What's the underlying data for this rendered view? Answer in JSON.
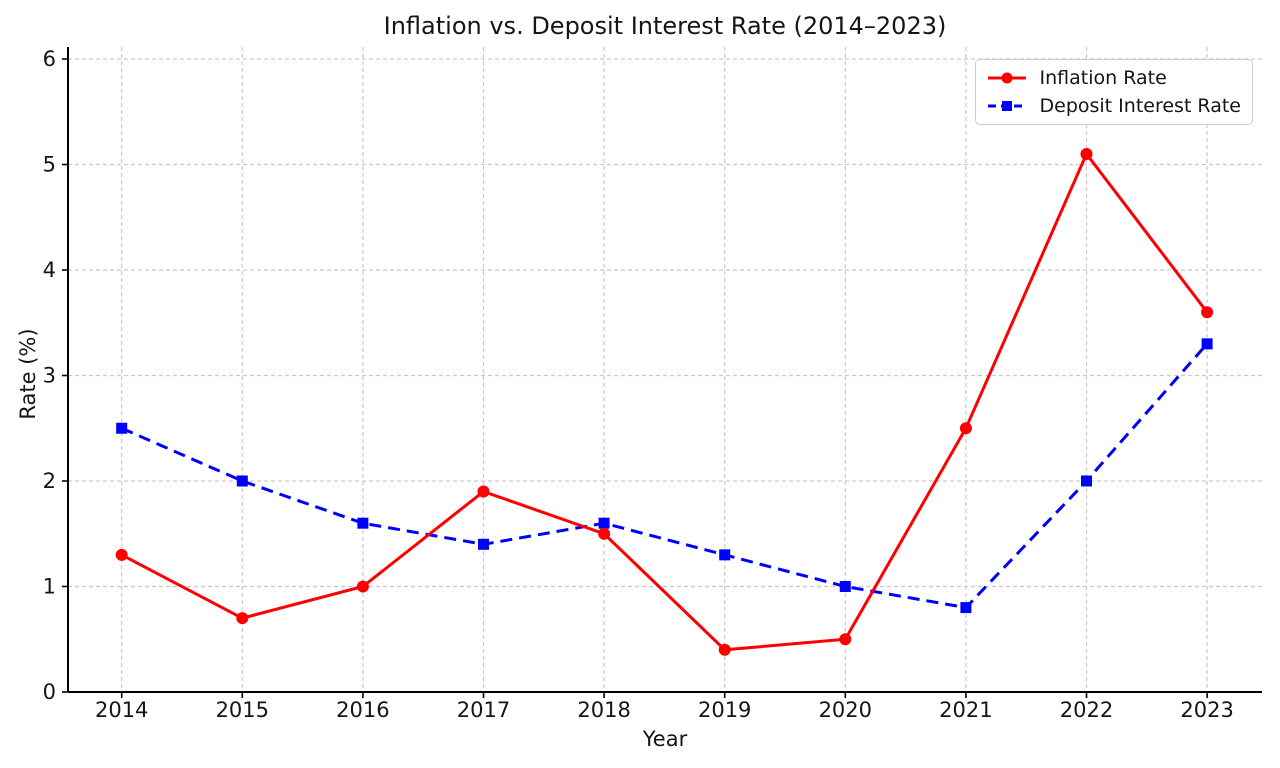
{
  "chart_data": {
    "type": "line",
    "title": "Inflation vs. Deposit Interest Rate (2014–2023)",
    "xlabel": "Year",
    "ylabel": "Rate (%)",
    "x": [
      2014,
      2015,
      2016,
      2017,
      2018,
      2019,
      2020,
      2021,
      2022,
      2023
    ],
    "ylim": [
      0,
      6.1
    ],
    "yticks": [
      0,
      1,
      2,
      3,
      4,
      5,
      6
    ],
    "grid": true,
    "grid_style": "dashed",
    "legend_position": "upper-right",
    "series": [
      {
        "name": "Inflation Rate",
        "color": "#ff0000",
        "line_style": "solid",
        "marker": "circle",
        "values": [
          1.3,
          0.7,
          1.0,
          1.9,
          1.5,
          0.4,
          0.5,
          2.5,
          5.1,
          3.6
        ]
      },
      {
        "name": "Deposit Interest Rate",
        "color": "#0000ff",
        "line_style": "dashed",
        "marker": "square",
        "values": [
          2.5,
          2.0,
          1.6,
          1.4,
          1.6,
          1.3,
          1.0,
          0.8,
          2.0,
          3.3
        ]
      }
    ]
  }
}
